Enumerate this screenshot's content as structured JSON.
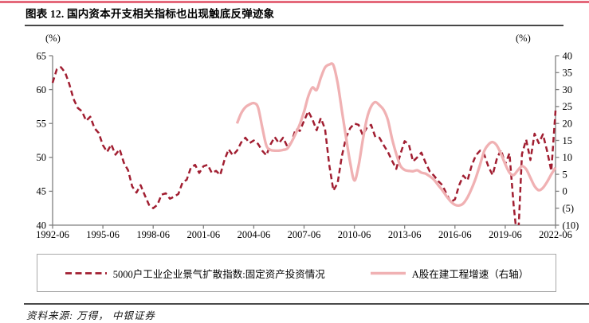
{
  "figure": {
    "title": "图表 12. 国内资本开支相关指标也出现触底反弹迹象",
    "source_note": "资料来源: 万得， 中银证券",
    "accent_color": "#e4687a"
  },
  "chart_data": {
    "type": "line",
    "title": "国内资本开支相关指标也出现触底反弹迹象",
    "grid": "off",
    "legend_position": "bottom-box",
    "axis_color": "#7f7f7f",
    "left_axis": {
      "label": "(%)",
      "min": 40,
      "max": 65,
      "ticks": [
        65,
        60,
        55,
        50,
        45,
        40
      ]
    },
    "right_axis": {
      "label": "(%)",
      "min": -10,
      "max": 40,
      "tick_values": [
        40,
        35,
        30,
        25,
        20,
        15,
        10,
        5,
        0,
        -5,
        -10
      ],
      "tick_labels": [
        "40",
        "35",
        "30",
        "25",
        "20",
        "15",
        "10",
        "5",
        "0",
        "(5)",
        "(10)"
      ],
      "negative_color": "#ff0000"
    },
    "x_axis": {
      "start": 1992.5,
      "end": 2022.5,
      "tick_positions": [
        1992.5,
        1995.5,
        1998.5,
        2001.5,
        2004.5,
        2007.5,
        2010.5,
        2013.5,
        2016.5,
        2019.5,
        2022.5
      ],
      "tick_labels": [
        "1992-06",
        "1995-06",
        "1998-06",
        "2001-06",
        "2004-06",
        "2007-06",
        "2010-06",
        "2013-06",
        "2016-06",
        "2019-06",
        "2022-06"
      ]
    },
    "series": [
      {
        "name": "5000户工业企业景气扩散指数:固定资产投资情况",
        "axis": "left",
        "style": "dashed",
        "smooth": false,
        "color": "#a11e31",
        "x_start": 1992.5,
        "x_step": 0.25,
        "values": [
          61.0,
          63.0,
          63.3,
          62.5,
          60.8,
          58.6,
          57.3,
          56.8,
          55.4,
          56.0,
          54.3,
          53.6,
          51.8,
          50.8,
          51.9,
          50.4,
          51.2,
          49.2,
          48.1,
          45.7,
          44.8,
          45.9,
          44.4,
          43.0,
          42.5,
          43.0,
          44.5,
          44.7,
          43.9,
          44.2,
          44.6,
          46.3,
          46.7,
          48.5,
          48.9,
          47.7,
          48.7,
          48.9,
          47.7,
          48.0,
          47.4,
          49.6,
          51.2,
          50.3,
          51.0,
          52.2,
          52.9,
          52.1,
          52.5,
          52.0,
          51.0,
          50.3,
          51.9,
          53.0,
          52.1,
          52.9,
          51.6,
          52.2,
          54.2,
          53.9,
          55.4,
          56.8,
          55.6,
          54.0,
          55.8,
          54.2,
          48.9,
          45.1,
          46.2,
          50.1,
          52.9,
          54.3,
          55.0,
          54.8,
          53.3,
          54.4,
          54.8,
          53.0,
          52.9,
          51.8,
          50.8,
          49.5,
          48.3,
          50.5,
          52.4,
          51.9,
          49.4,
          50.0,
          50.7,
          49.2,
          47.9,
          47.3,
          46.5,
          45.9,
          44.6,
          43.4,
          43.8,
          45.9,
          47.3,
          46.6,
          48.8,
          50.3,
          51.0,
          50.4,
          48.6,
          47.4,
          49.8,
          51.1,
          49.0,
          50.6,
          43.0,
          37.0,
          50.5,
          52.6,
          49.6,
          53.5,
          52.1,
          53.4,
          50.9,
          48.0,
          56.9
        ]
      },
      {
        "name": "A股在建工程增速（右轴）",
        "axis": "right",
        "style": "solid",
        "smooth": true,
        "color": "#f0b1b3",
        "x_start": 2003.5,
        "x_step": 0.25,
        "values": [
          20.0,
          23.0,
          24.8,
          25.6,
          26.0,
          24.8,
          19.0,
          13.5,
          12.2,
          12.0,
          12.0,
          12.2,
          12.6,
          14.5,
          17.0,
          19.8,
          23.5,
          28.0,
          30.6,
          29.9,
          33.5,
          36.5,
          37.4,
          37.2,
          32.0,
          24.0,
          16.0,
          8.5,
          3.2,
          7.5,
          15.0,
          21.5,
          25.0,
          26.3,
          25.4,
          24.0,
          21.0,
          15.5,
          11.0,
          7.5,
          6.3,
          6.0,
          5.9,
          6.2,
          5.5,
          5.2,
          4.4,
          3.4,
          1.8,
          0.3,
          -1.5,
          -3.0,
          -4.0,
          -4.2,
          -3.6,
          -1.8,
          0.8,
          4.0,
          7.9,
          11.9,
          13.8,
          14.5,
          13.5,
          11.0,
          8.0,
          5.5,
          4.8,
          6.2,
          7.4,
          6.5,
          4.0,
          1.5,
          0.3,
          1.0,
          2.8,
          5.0,
          7.0
        ]
      }
    ]
  }
}
